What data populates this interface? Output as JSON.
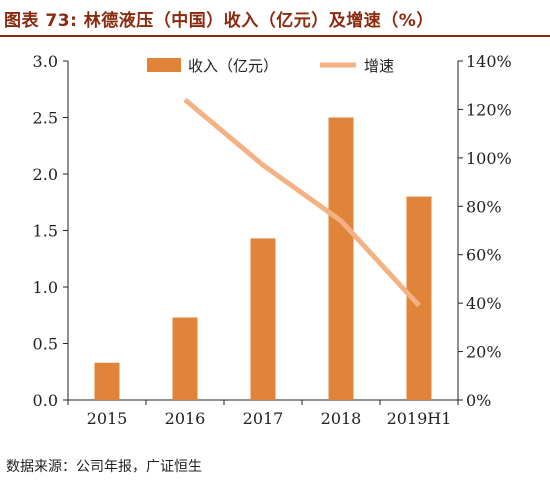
{
  "title": "图表 73: 林德液压（中国）收入（亿元）及增速（%）",
  "source": "数据来源：公司年报，广证恒生",
  "colors": {
    "bar": "#e0843a",
    "line": "#f4b183",
    "title": "#8b2a0e",
    "axis": "#222222"
  },
  "chart_data": {
    "type": "bar",
    "categories": [
      "2015",
      "2016",
      "2017",
      "2018",
      "2019H1"
    ],
    "series": [
      {
        "name": "收入（亿元）",
        "type": "bar",
        "axis": "left",
        "values": [
          0.33,
          0.73,
          1.43,
          2.5,
          1.8
        ]
      },
      {
        "name": "增速",
        "type": "line",
        "axis": "right",
        "values": [
          null,
          1.24,
          0.97,
          0.74,
          0.39
        ]
      }
    ],
    "y_left": {
      "min": 0,
      "max": 3.0,
      "ticks": [
        "0.0",
        "0.5",
        "1.0",
        "1.5",
        "2.0",
        "2.5",
        "3.0"
      ]
    },
    "y_right": {
      "min": 0,
      "max": 1.4,
      "ticks": [
        "0%",
        "20%",
        "40%",
        "60%",
        "80%",
        "100%",
        "120%",
        "140%"
      ]
    },
    "grid": false,
    "legend_position": "top-center"
  }
}
